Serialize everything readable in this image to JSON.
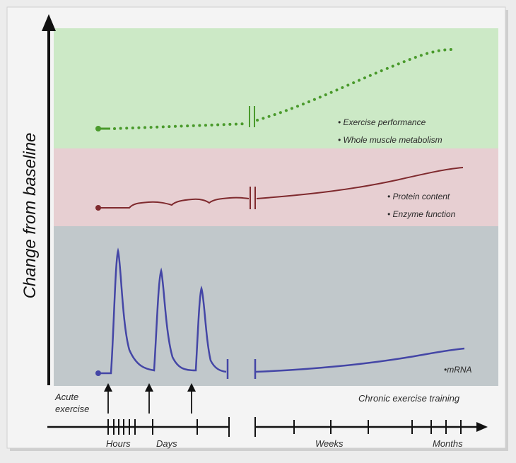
{
  "y_axis_label": "Change from baseline",
  "colors": {
    "background": "#ececec",
    "band_top": "#cce9c6",
    "band_middle": "#e7cfd2",
    "band_bottom": "#c1c8cb",
    "green_line": "#4a9a2c",
    "red_line": "#7f2a2e",
    "blue_line": "#4446a6",
    "axis": "#111111"
  },
  "bands": [
    {
      "key": "top",
      "labels": [
        "• Exercise performance",
        "• Whole muscle metabolism"
      ]
    },
    {
      "key": "middle",
      "labels": [
        "• Protein content",
        "• Enzyme function"
      ]
    },
    {
      "key": "bottom",
      "labels": [
        "•mRNA"
      ]
    }
  ],
  "acute_label": [
    "Acute",
    "exercise"
  ],
  "chronic_label": "Chronic exercise training",
  "timescale_labels": [
    "Hours",
    "Days",
    "Weeks",
    "Months"
  ]
}
